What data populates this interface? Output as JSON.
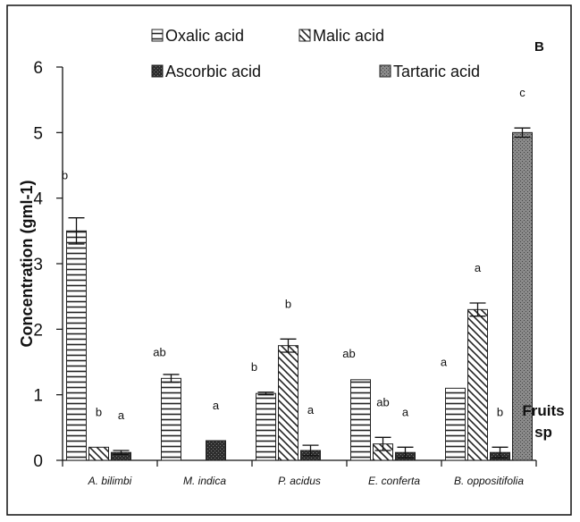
{
  "chart_data": {
    "type": "bar",
    "panel_label": "B",
    "xlabel": "Fruits sp",
    "ylabel": "Concentration (gml-1)",
    "ylim": [
      0,
      6
    ],
    "yticks": [
      "0",
      "1",
      "2",
      "3",
      "4",
      "5",
      "6"
    ],
    "categories": [
      "A. bilimbi",
      "M. indica",
      "P. acidus",
      "E. conferta",
      "B. oppositifolia"
    ],
    "series": [
      {
        "name": "Oxalic acid",
        "pattern": "horizontal-lines",
        "values": [
          3.5,
          1.25,
          1.02,
          1.23,
          1.1
        ],
        "errors": [
          0.2,
          0.06,
          0.02,
          0.0,
          0.0
        ],
        "labels": [
          "b",
          "ab",
          "b",
          "ab",
          "a"
        ]
      },
      {
        "name": "Malic acid",
        "pattern": "diagonal-lines",
        "values": [
          0.2,
          null,
          1.75,
          0.25,
          2.3
        ],
        "errors": [
          0.0,
          null,
          0.1,
          0.1,
          0.1
        ],
        "labels": [
          "b",
          "",
          "b",
          "ab",
          "a"
        ]
      },
      {
        "name": "Ascorbic acid",
        "pattern": "dark-stipple",
        "values": [
          0.12,
          0.3,
          0.15,
          0.12,
          0.12
        ],
        "errors": [
          0.03,
          0.0,
          0.08,
          0.08,
          0.08
        ],
        "labels": [
          "a",
          "a",
          "a",
          "a",
          "b"
        ]
      },
      {
        "name": "Tartaric acid",
        "pattern": "grey-stipple",
        "values": [
          null,
          null,
          null,
          null,
          5.0
        ],
        "errors": [
          null,
          null,
          null,
          null,
          0.07
        ],
        "labels": [
          "",
          "",
          "",
          "",
          "c"
        ]
      }
    ],
    "legend": {
      "placement": "top-center"
    },
    "grid": false
  }
}
